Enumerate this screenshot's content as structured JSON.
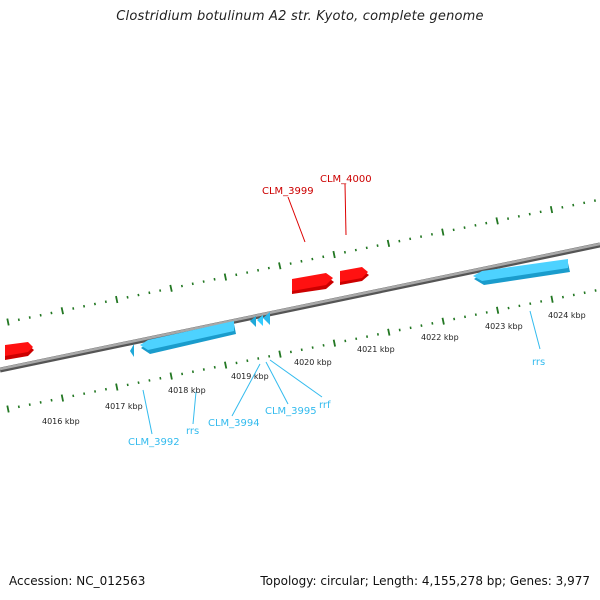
{
  "title": "Clostridium botulinum A2 str. Kyoto, complete genome",
  "footer": {
    "accession": "Accession: NC_012563",
    "summary": "Topology: circular; Length: 4,155,278 bp; Genes: 3,977"
  },
  "colors": {
    "forward_gene": "#ff0000",
    "reverse_gene": "#33ccff",
    "forward_label": "#cc0000",
    "reverse_label": "#33bbee",
    "ticks": "#227722",
    "backbone": "#888888"
  },
  "axis": {
    "unit": "kbp",
    "tick_labels": [
      "4016 kbp",
      "4017 kbp",
      "4018 kbp",
      "4019 kbp",
      "4020 kbp",
      "4021 kbp",
      "4022 kbp",
      "4023 kbp",
      "4024 kbp"
    ]
  },
  "genes": {
    "forward": [
      {
        "label": "CLM_3999"
      },
      {
        "label": "CLM_4000"
      }
    ],
    "reverse": [
      {
        "label": "CLM_3992"
      },
      {
        "label": "rrs"
      },
      {
        "label": "CLM_3994"
      },
      {
        "label": "CLM_3995"
      },
      {
        "label": "rrf"
      },
      {
        "label": "rrs"
      }
    ]
  }
}
